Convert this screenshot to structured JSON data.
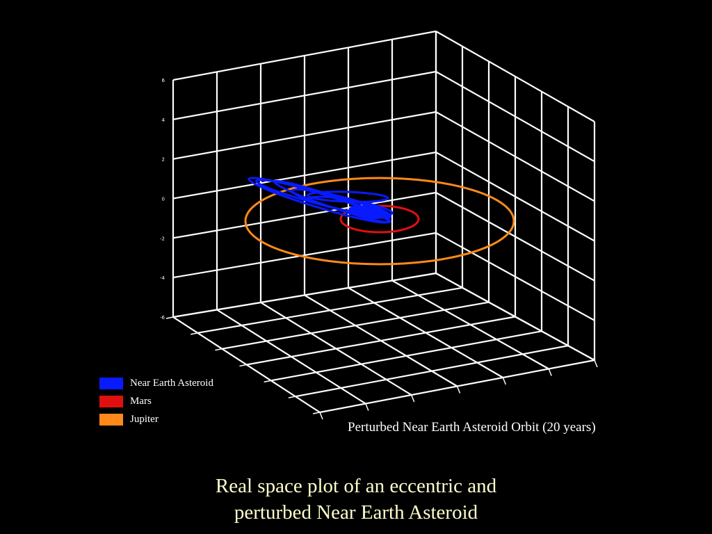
{
  "chart_data": {
    "type": "line",
    "title": "Perturbed Near Earth Asteroid Orbit (20 years)",
    "z_ticks": [
      "6",
      "4",
      "2",
      "0",
      "-2",
      "-4",
      "-6"
    ],
    "grid": true,
    "legend_position": "bottom-left",
    "series": [
      {
        "name": "Near Earth Asteroid",
        "color": "#0a1aff"
      },
      {
        "name": "Mars",
        "color": "#e01010"
      },
      {
        "name": "Jupiter",
        "color": "#ff8a1a"
      }
    ]
  },
  "caption": {
    "line1": "Real space plot of an eccentric and",
    "line2": "perturbed Near Earth Asteroid"
  }
}
